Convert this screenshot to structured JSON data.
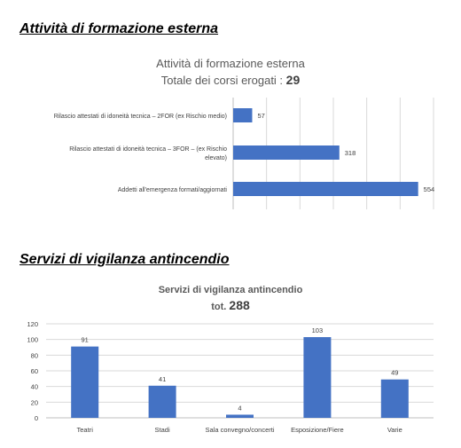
{
  "section1": {
    "heading": "Attività di formazione esterna"
  },
  "section2": {
    "heading": "Servizi di vigilanza antincendio"
  },
  "chart_data": [
    {
      "type": "bar",
      "orientation": "horizontal",
      "title": "Attività di formazione esterna",
      "subtitle_prefix": "Totale dei corsi erogati : ",
      "subtitle_total": "29",
      "categories": [
        "Rilascio attestati di idoneità tecnica – 2FOR (ex Rischio medio)",
        "Rilascio attestati di idoneità tecnica – 3FOR – (ex Rischio elevato)",
        "Addetti all'emergenza formati/aggiornati"
      ],
      "category_lines": [
        [
          "Rilascio attestati di idoneità tecnica – 2FOR (ex Rischio medio)"
        ],
        [
          "Rilascio attestati di idoneità tecnica – 3FOR – (ex Rischio",
          "elevato)"
        ],
        [
          "Addetti all'emergenza formati/aggiornati"
        ]
      ],
      "values": [
        57,
        318,
        554
      ],
      "xlim": [
        0,
        600
      ],
      "grid": true,
      "bar_color": "#4472C4"
    },
    {
      "type": "bar",
      "orientation": "vertical",
      "title": "Servizi di vigilanza antincendio",
      "subtitle_prefix": "tot. ",
      "subtitle_total": "288",
      "categories": [
        "Teatri",
        "Stadi",
        "Sala convegno/concerti",
        "Esposizione/Fiere",
        "Varie"
      ],
      "values": [
        91,
        41,
        4,
        103,
        49
      ],
      "ylim": [
        0,
        120
      ],
      "yticks": [
        "0",
        "20",
        "40",
        "60",
        "80",
        "100",
        "120"
      ],
      "grid": true,
      "bar_color": "#4472C4"
    }
  ]
}
